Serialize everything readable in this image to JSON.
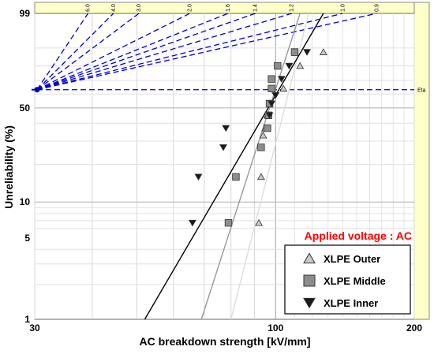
{
  "chart_data": {
    "type": "scatter",
    "scale": "weibull",
    "title": "",
    "xlabel": "AC breakdown strength [kV/mm]",
    "ylabel": "Unreliability (%)",
    "xlim": [
      30,
      200
    ],
    "ylim": [
      1,
      99
    ],
    "x_ticks": [
      "30",
      "100",
      "200"
    ],
    "y_ticks": [
      "1",
      "5",
      "10",
      "50",
      "99"
    ],
    "annotation": "Applied voltage : AC",
    "annotation_color": "#ff0000",
    "legend_position": "bottom-right",
    "beta_scale": {
      "labels": [
        "6.0",
        "4.0",
        "3.0",
        "2.0",
        "1.6",
        "1.4",
        "1.2",
        "1.0",
        "0.9"
      ],
      "eta_label": "Eta",
      "pivot_y_percent": 63.2,
      "color": "#0000cc"
    },
    "series": [
      {
        "name": "XLPE Outer",
        "marker": "triangle-up",
        "fill": "#c8c8c8",
        "line_color": "#dddddd",
        "points": [
          {
            "x": 92,
            "y": 6.7
          },
          {
            "x": 93,
            "y": 16
          },
          {
            "x": 94,
            "y": 33
          },
          {
            "x": 95,
            "y": 37
          },
          {
            "x": 96,
            "y": 45
          },
          {
            "x": 104,
            "y": 64
          },
          {
            "x": 113,
            "y": 80
          },
          {
            "x": 127,
            "y": 88
          }
        ],
        "fit": {
          "x": [
            80,
            118
          ],
          "y": [
            1,
            99
          ]
        }
      },
      {
        "name": "XLPE Middle",
        "marker": "square",
        "fill": "#8c8c8c",
        "line_color": "#999999",
        "points": [
          {
            "x": 79,
            "y": 6.7
          },
          {
            "x": 82,
            "y": 16
          },
          {
            "x": 93,
            "y": 27
          },
          {
            "x": 96,
            "y": 37
          },
          {
            "x": 96.5,
            "y": 45
          },
          {
            "x": 97,
            "y": 53
          },
          {
            "x": 98,
            "y": 64
          },
          {
            "x": 98,
            "y": 71
          },
          {
            "x": 101,
            "y": 80
          },
          {
            "x": 110,
            "y": 88
          }
        ],
        "fit": {
          "x": [
            69,
            113
          ],
          "y": [
            1,
            99
          ]
        }
      },
      {
        "name": "XLPE Inner",
        "marker": "triangle-down",
        "fill": "#1a1a1a",
        "line_color": "#000000",
        "points": [
          {
            "x": 66,
            "y": 6.7
          },
          {
            "x": 68,
            "y": 16
          },
          {
            "x": 77,
            "y": 27
          },
          {
            "x": 78,
            "y": 37
          },
          {
            "x": 97,
            "y": 45
          },
          {
            "x": 98,
            "y": 53
          },
          {
            "x": 100,
            "y": 59
          },
          {
            "x": 103,
            "y": 71
          },
          {
            "x": 107,
            "y": 80
          },
          {
            "x": 117,
            "y": 88
          }
        ],
        "fit": {
          "x": [
            52,
            127
          ],
          "y": [
            1,
            99
          ]
        }
      }
    ]
  }
}
